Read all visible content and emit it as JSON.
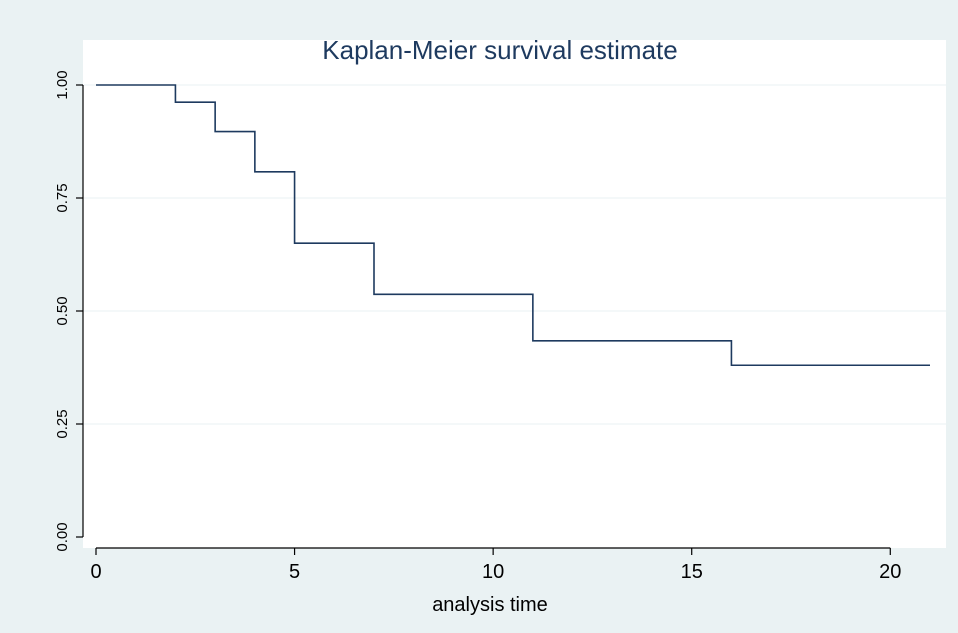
{
  "chart_data": {
    "type": "line",
    "step": true,
    "title": "Kaplan-Meier survival estimate",
    "xlabel": "analysis time",
    "ylabel": "",
    "xlim": [
      0,
      21
    ],
    "ylim": [
      0,
      1
    ],
    "x_ticks": [
      0,
      5,
      10,
      15,
      20
    ],
    "x_tick_labels": [
      "0",
      "5",
      "10",
      "15",
      "20"
    ],
    "y_ticks": [
      0,
      0.25,
      0.5,
      0.75,
      1
    ],
    "y_tick_labels": [
      "0.00",
      "0.25",
      "0.50",
      "0.75",
      "1.00"
    ],
    "grid": "horizontal",
    "legend": "none",
    "series": [
      {
        "x": [
          0,
          2,
          3,
          4,
          5,
          7,
          11,
          16,
          21
        ],
        "y": [
          1.0,
          0.962,
          0.897,
          0.808,
          0.65,
          0.537,
          0.434,
          0.38,
          0.38
        ]
      }
    ],
    "colors": {
      "line": "#1e3a5f",
      "plot_background": "#ffffff",
      "outer_background": "#eaf2f3",
      "grid": "#eaf2f3",
      "axis": "#000000"
    }
  }
}
